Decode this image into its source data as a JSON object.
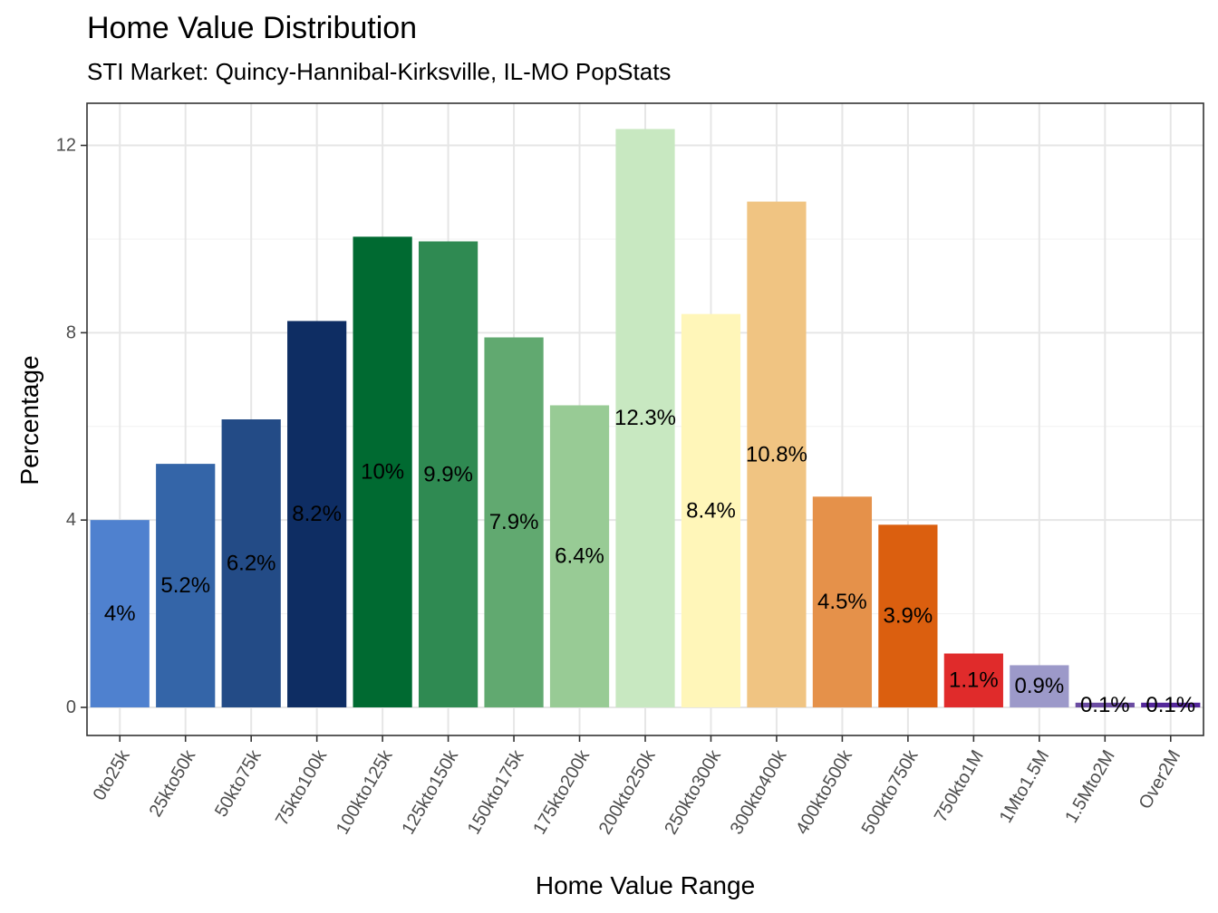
{
  "chart_data": {
    "type": "bar",
    "title": "Home Value Distribution",
    "subtitle": "STI Market: Quincy-Hannibal-Kirksville, IL-MO PopStats",
    "xlabel": "Home Value Range",
    "ylabel": "Percentage",
    "ylim": [
      -0.6,
      12.9
    ],
    "yticks": [
      0,
      4,
      8,
      12
    ],
    "grid": true,
    "legend": "none",
    "categories": [
      "0to25k",
      "25kto50k",
      "50kto75k",
      "75kto100k",
      "100kto125k",
      "125kto150k",
      "150kto175k",
      "175kto200k",
      "200kto250k",
      "250kto300k",
      "300kto400k",
      "400kto500k",
      "500kto750k",
      "750kto1M",
      "1Mto1.5M",
      "1.5Mto2M",
      "Over2M"
    ],
    "values": [
      4.0,
      5.2,
      6.15,
      8.25,
      10.05,
      9.95,
      7.9,
      6.45,
      12.35,
      8.4,
      10.8,
      4.5,
      3.9,
      1.15,
      0.9,
      0.1,
      0.1
    ],
    "labels": [
      "4%",
      "5.2%",
      "6.2%",
      "8.2%",
      "10%",
      "9.9%",
      "7.9%",
      "6.4%",
      "12.3%",
      "8.4%",
      "10.8%",
      "4.5%",
      "3.9%",
      "1.1%",
      "0.9%",
      "0.1%",
      "0.1%"
    ],
    "colors": [
      "#4f81cf",
      "#3465a8",
      "#234b86",
      "#0e2d63",
      "#006a31",
      "#2f8a52",
      "#61a970",
      "#98cb95",
      "#c8e8c1",
      "#fff6b9",
      "#f0c482",
      "#e5914a",
      "#db5f0f",
      "#e02b2b",
      "#9c99c9",
      "#6a4ba1",
      "#54279a"
    ]
  }
}
